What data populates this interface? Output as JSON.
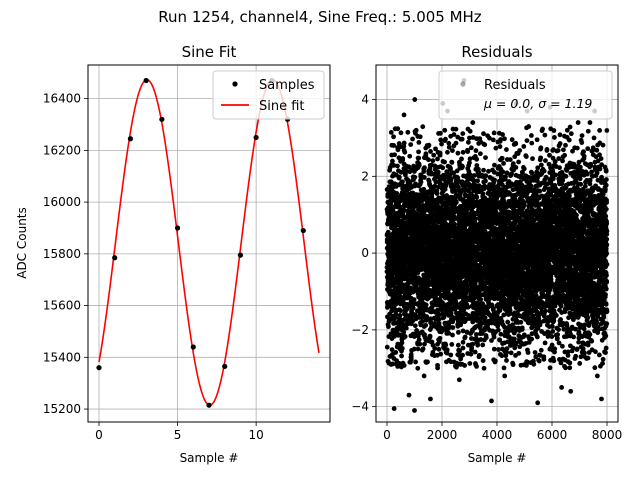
{
  "figure": {
    "suptitle": "Run 1254, channel4, Sine Freq.: 5.005 MHz"
  },
  "chart_data": [
    {
      "type": "line",
      "title": "Sine Fit",
      "xlabel": "Sample #",
      "ylabel": "ADC Counts",
      "xlim": [
        -0.7,
        14.7
      ],
      "ylim": [
        15150,
        16530
      ],
      "xticks": [
        0,
        5,
        10
      ],
      "yticks": [
        15200,
        15400,
        15600,
        15800,
        16000,
        16200,
        16400
      ],
      "grid": true,
      "legend": "top-right",
      "fit": {
        "amplitude": 629,
        "offset": 15844,
        "period": 8.0,
        "phase_sample": 3.05,
        "x_start": 0,
        "x_end": 14
      },
      "series": [
        {
          "name": "Samples",
          "marker": "dot",
          "color": "#000000",
          "x": [
            0,
            1,
            2,
            3,
            4,
            5,
            6,
            7,
            8,
            9,
            10,
            11,
            12,
            13
          ],
          "y": [
            15360,
            15785,
            16245,
            16470,
            16320,
            15900,
            15440,
            15215,
            15365,
            15795,
            16250,
            16470,
            16320,
            15890
          ]
        },
        {
          "name": "Sine fit",
          "style": "line",
          "color": "#ff0000"
        }
      ]
    },
    {
      "type": "scatter",
      "title": "Residuals",
      "xlabel": "Sample #",
      "ylabel": "",
      "xlim": [
        -400,
        8400
      ],
      "ylim": [
        -4.4,
        4.9
      ],
      "xticks": [
        0,
        2000,
        4000,
        6000,
        8000
      ],
      "yticks": [
        -4,
        -2,
        0,
        2,
        4
      ],
      "grid": true,
      "legend": "top-right",
      "legend_lines": [
        "Residuals",
        "μ = 0.0, σ = 1.19"
      ],
      "series": [
        {
          "name": "Residuals",
          "marker": "dot",
          "color": "#000000",
          "n_points": 8000,
          "mean": 0.0,
          "std": 1.19
        }
      ],
      "outliers": {
        "x": [
          150,
          260,
          620,
          800,
          1000,
          1120,
          1350,
          1580,
          2030,
          2200,
          2630,
          2800,
          3120,
          3530,
          3800,
          4280,
          4700,
          5100,
          5480,
          5930,
          6350,
          6680,
          6950,
          7380,
          7550,
          7650,
          7800,
          1010,
          2100,
          2680
        ],
        "y": [
          -2.9,
          -4.05,
          3.6,
          -3.7,
          -4.1,
          -3.0,
          -3.2,
          -3.8,
          3.9,
          3.7,
          -3.3,
          4.5,
          3.4,
          -3.0,
          -3.85,
          -3.2,
          3.9,
          3.7,
          -3.9,
          3.8,
          -3.5,
          -3.6,
          3.4,
          3.4,
          3.7,
          -3.2,
          -3.8,
          4.0,
          3.2,
          -2.9
        ]
      }
    }
  ]
}
